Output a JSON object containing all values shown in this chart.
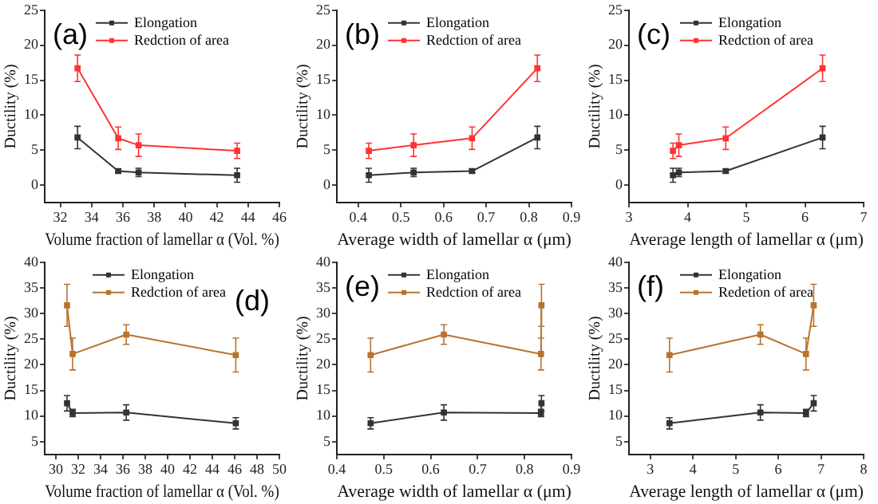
{
  "chart_data": [
    {
      "type": "line",
      "annotations": [
        "(a)"
      ],
      "xlabel": "Volume fraction of lamellar α (Vol. %)",
      "ylabel": "Ductility (%)",
      "x": [
        33.1,
        35.7,
        37.0,
        43.3
      ],
      "xlim": [
        31,
        46
      ],
      "xticks": [
        32,
        34,
        36,
        38,
        40,
        42,
        44,
        46
      ],
      "ylim": [
        -2.5,
        25
      ],
      "yticks": [
        0,
        5,
        10,
        15,
        20,
        25
      ],
      "legend": "top right",
      "marker": "square",
      "series": [
        {
          "name": "Elongation",
          "color": "#333333",
          "values": [
            6.8,
            2.0,
            1.8,
            1.4
          ],
          "errors": [
            1.6,
            0.3,
            0.6,
            1.0
          ]
        },
        {
          "name": "Redction of area",
          "color": "#ff3333",
          "values": [
            16.7,
            6.7,
            5.7,
            4.9
          ],
          "errors": [
            1.9,
            1.6,
            1.6,
            1.1
          ]
        }
      ]
    },
    {
      "type": "line",
      "annotations": [
        "(b)"
      ],
      "xlabel": "Average width of lamellar α (μm)",
      "ylabel": "Ductility (%)",
      "x": [
        0.425,
        0.53,
        0.667,
        0.82
      ],
      "xlim": [
        0.35,
        0.9
      ],
      "xticks": [
        0.4,
        0.5,
        0.6,
        0.7,
        0.8,
        0.9
      ],
      "ylim": [
        -2.5,
        25
      ],
      "yticks": [
        0,
        5,
        10,
        15,
        20,
        25
      ],
      "legend": "top right",
      "marker": "square",
      "series": [
        {
          "name": "Elongation",
          "color": "#333333",
          "values": [
            1.4,
            1.8,
            2.0,
            6.8
          ],
          "errors": [
            1.0,
            0.6,
            0.3,
            1.6
          ]
        },
        {
          "name": "Redction of area",
          "color": "#ff3333",
          "values": [
            4.9,
            5.7,
            6.7,
            16.7
          ],
          "errors": [
            1.1,
            1.6,
            1.6,
            1.9
          ]
        }
      ]
    },
    {
      "type": "line",
      "annotations": [
        "(c)"
      ],
      "xlabel": "Average length of lamellar α (μm)",
      "ylabel": "Ductility (%)",
      "x": [
        3.75,
        3.85,
        4.65,
        6.3
      ],
      "xlim": [
        3,
        7
      ],
      "xticks": [
        3,
        4,
        5,
        6,
        7
      ],
      "ylim": [
        -2.5,
        25
      ],
      "yticks": [
        0,
        5,
        10,
        15,
        20,
        25
      ],
      "legend": "top right",
      "marker": "square",
      "series": [
        {
          "name": "Elongation",
          "color": "#333333",
          "values": [
            1.4,
            1.8,
            2.0,
            6.8
          ],
          "errors": [
            1.0,
            0.6,
            0.3,
            1.6
          ]
        },
        {
          "name": "Redction of area",
          "color": "#ff3333",
          "values": [
            4.9,
            5.7,
            6.7,
            16.7
          ],
          "errors": [
            1.1,
            1.6,
            1.6,
            1.9
          ]
        }
      ]
    },
    {
      "type": "line",
      "annotations": [
        "(d)"
      ],
      "xlabel": "Volume fraction of lamellar α (Vol. %)",
      "ylabel": "Ductility (%)",
      "x": [
        31.0,
        31.5,
        36.3,
        46.1
      ],
      "xlim": [
        29,
        50
      ],
      "xticks": [
        30,
        32,
        34,
        36,
        38,
        40,
        42,
        44,
        46,
        48,
        50
      ],
      "ylim": [
        2.5,
        40
      ],
      "yticks": [
        5,
        10,
        15,
        20,
        25,
        30,
        35,
        40
      ],
      "legend": "top",
      "marker": "square",
      "series": [
        {
          "name": "Elongation",
          "color": "#333333",
          "values": [
            12.5,
            10.6,
            10.7,
            8.6
          ],
          "errors": [
            1.5,
            0.7,
            1.5,
            1.1
          ]
        },
        {
          "name": "Redction of area",
          "color": "#b8732e",
          "values": [
            31.6,
            22.1,
            25.9,
            21.9
          ],
          "errors": [
            4.1,
            3.1,
            1.9,
            3.3
          ]
        }
      ]
    },
    {
      "type": "line",
      "annotations": [
        "(e)"
      ],
      "xlabel": "Average width of lamellar α (μm)",
      "ylabel": "Ductility (%)",
      "x": [
        0.472,
        0.628,
        0.835,
        0.836
      ],
      "xlim": [
        0.4,
        0.9
      ],
      "xticks": [
        0.4,
        0.5,
        0.6,
        0.7,
        0.8,
        0.9
      ],
      "ylim": [
        2.5,
        40
      ],
      "yticks": [
        5,
        10,
        15,
        20,
        25,
        30,
        35,
        40
      ],
      "legend": "top right",
      "marker": "square",
      "series": [
        {
          "name": "Elongation",
          "color": "#333333",
          "values": [
            8.6,
            10.7,
            10.6,
            12.5
          ],
          "errors": [
            1.1,
            1.5,
            0.7,
            1.5
          ]
        },
        {
          "name": "Redction of area",
          "color": "#b8732e",
          "values": [
            21.9,
            25.9,
            22.1,
            31.6
          ],
          "errors": [
            3.3,
            1.9,
            3.1,
            4.1
          ]
        }
      ]
    },
    {
      "type": "line",
      "annotations": [
        "(f)"
      ],
      "xlabel": "Average length of lamellar α (μm)",
      "ylabel": "Ductility (%)",
      "x": [
        3.45,
        5.58,
        6.65,
        6.83
      ],
      "xlim": [
        2.5,
        8
      ],
      "xticks": [
        3,
        4,
        5,
        6,
        7,
        8
      ],
      "ylim": [
        2.5,
        40
      ],
      "yticks": [
        5,
        10,
        15,
        20,
        25,
        30,
        35,
        40
      ],
      "legend": "top right",
      "marker": "square",
      "series": [
        {
          "name": "Elongation",
          "color": "#333333",
          "values": [
            8.6,
            10.7,
            10.6,
            12.5
          ],
          "errors": [
            1.1,
            1.5,
            0.7,
            1.5
          ]
        },
        {
          "name": "Redetion of area",
          "color": "#b8732e",
          "values": [
            21.9,
            25.9,
            22.1,
            31.6
          ],
          "errors": [
            3.3,
            1.9,
            3.1,
            4.1
          ]
        }
      ]
    }
  ]
}
